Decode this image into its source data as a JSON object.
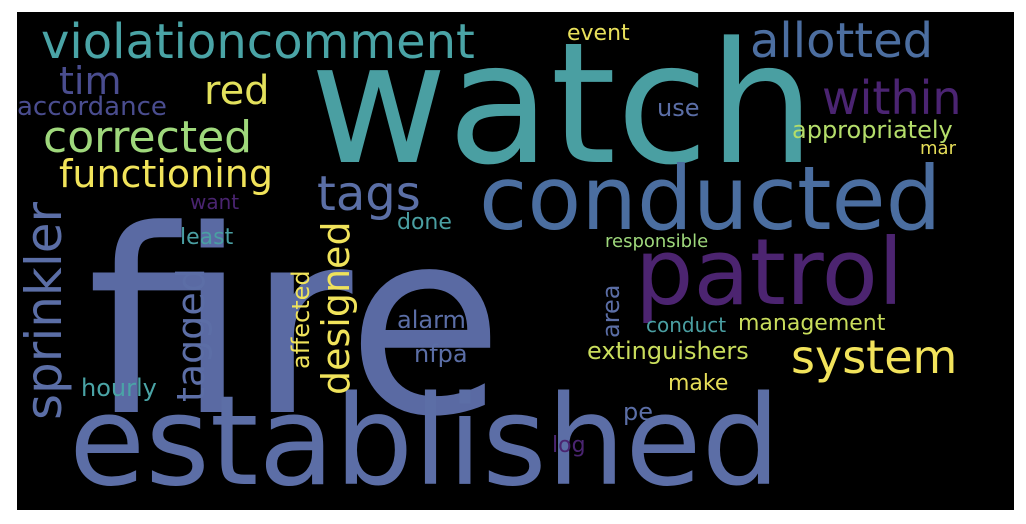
{
  "words": {
    "fire": "fire",
    "watch": "watch",
    "established": "established",
    "conducted": "conducted",
    "patrol": "patrol",
    "violationcomment": "violationcomment",
    "allotted": "allotted",
    "system": "system",
    "within": "within",
    "corrected": "corrected",
    "tags": "tags",
    "red": "red",
    "functioning": "functioning",
    "sprinkler": "sprinkler",
    "designed": "designed",
    "tagged": "tagged",
    "tim": "tim",
    "appropriately": "appropriately",
    "accordance": "accordance",
    "event": "event",
    "use": "use",
    "mar": "mar",
    "want": "want",
    "done": "done",
    "least": "least",
    "responsible": "responsible",
    "affected": "affected",
    "area": "area",
    "alarm": "alarm",
    "conduct": "conduct",
    "management": "management",
    "nfpa": "nfpa",
    "extinguishers": "extinguishers",
    "hourly": "hourly",
    "make": "make",
    "pe": "pe",
    "log": "log"
  },
  "colors": {
    "background": "#000000",
    "blue_dark": "#3a5188",
    "blue": "#5c6fa8",
    "teal": "#4aa4a5",
    "teal_light": "#5dbaa3",
    "purple": "#4b1f6e",
    "purple_mid": "#5a2d82",
    "yellow": "#f2e35b",
    "yellow_green": "#c9dd5c",
    "green": "#7ccf6e",
    "green_light": "#9bd97b"
  }
}
